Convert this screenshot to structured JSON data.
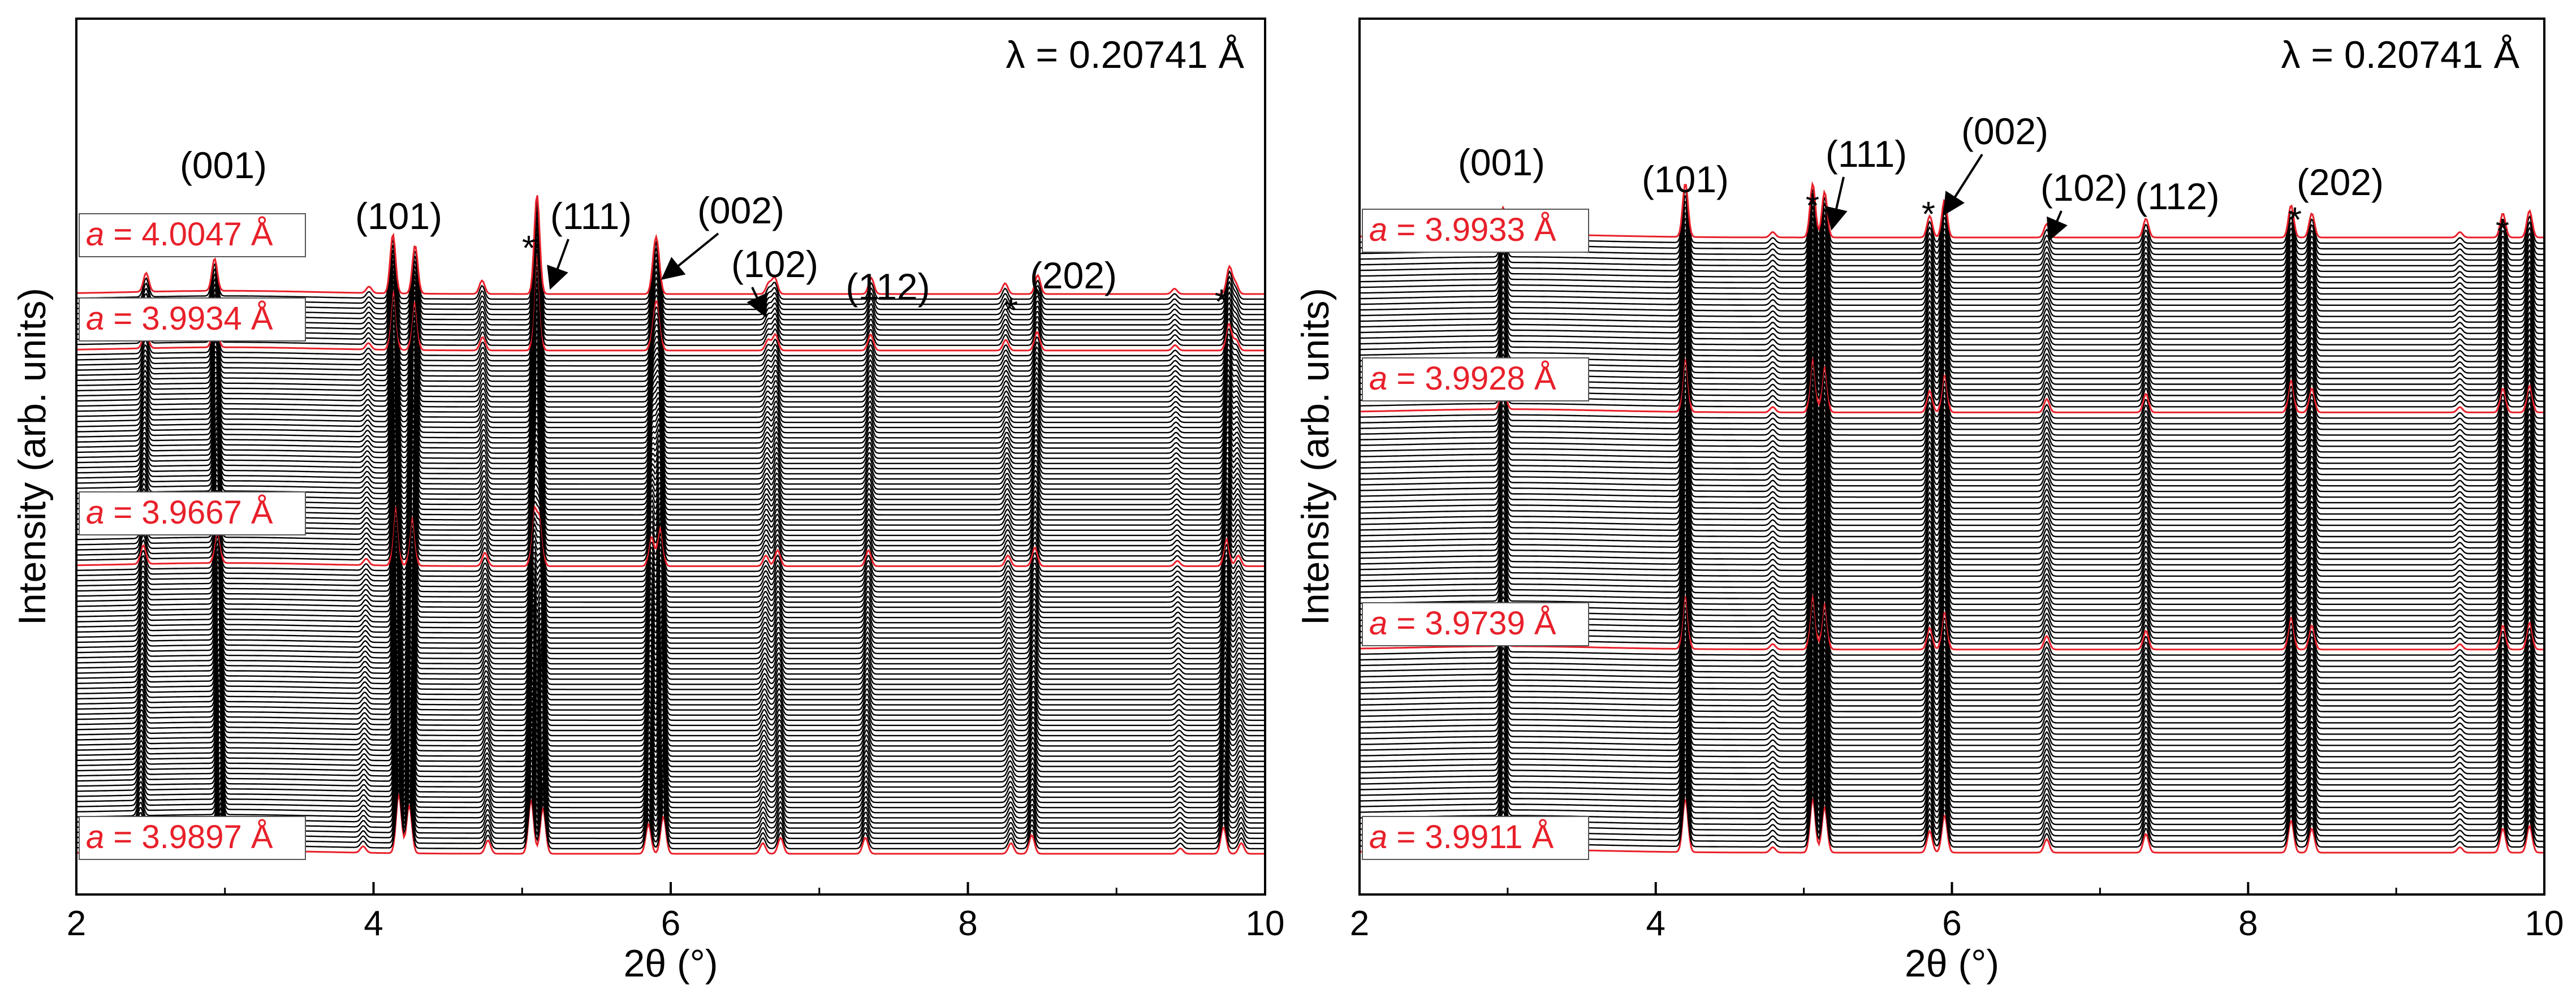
{
  "figure": {
    "x_unit_label": "2θ (°)",
    "y_label": "Intensity (arb. units)",
    "wavelength_label": "λ = 0.20741 Å",
    "colors": {
      "trace": "#000000",
      "highlight": "#e8202a",
      "label_text": "#e8202a",
      "axis": "#000000"
    }
  },
  "chart_data": [
    {
      "type": "line",
      "title": "",
      "xlabel": "2θ (°)",
      "ylabel": "Intensity (arb. units)",
      "xlim": [
        2,
        10
      ],
      "xticks": [
        2,
        4,
        6,
        8,
        10
      ],
      "grid": false,
      "wavelength": "λ = 0.20741 Å",
      "series_count": 110,
      "highlighted_series_labels": [
        {
          "prefix": "a",
          "text": " = 4.0047 Å"
        },
        {
          "prefix": "a",
          "text": " = 3.9934 Å"
        },
        {
          "prefix": "a",
          "text": " = 3.9667 Å"
        },
        {
          "prefix": "a",
          "text": " = 3.9897 Å"
        }
      ],
      "highlighted_series_index_from_bottom": [
        109,
        98,
        56,
        0
      ],
      "peaks_two_theta": [
        2.43,
        2.97,
        3.93,
        4.17,
        4.24,
        4.77,
        5.06,
        5.14,
        5.85,
        5.95,
        6.62,
        6.74,
        7.31,
        8.29,
        8.43,
        9.43,
        9.72,
        9.84
      ],
      "peak_heights": [
        0.35,
        0.6,
        0.12,
        1.1,
        0.9,
        0.25,
        1.0,
        0.85,
        0.55,
        0.7,
        0.2,
        0.3,
        0.3,
        0.2,
        0.35,
        0.1,
        0.5,
        0.2
      ],
      "annotations": [
        {
          "text": "(001)",
          "x": 2.97
        },
        {
          "text": "(101)",
          "x": 4.2
        },
        {
          "text": "*",
          "x": 5.06
        },
        {
          "text": "(111)",
          "x": 5.14
        },
        {
          "text": "(002)",
          "x": 5.95
        },
        {
          "text": "(102)",
          "x": 6.62
        },
        {
          "text": "(112)",
          "x": 7.31
        },
        {
          "text": "*",
          "x": 8.29
        },
        {
          "text": "(202)",
          "x": 8.43
        },
        {
          "text": "*",
          "x": 9.72
        }
      ]
    },
    {
      "type": "line",
      "title": "",
      "xlabel": "2θ (°)",
      "ylabel": "Intensity (arb. units)",
      "xlim": [
        2,
        10
      ],
      "xticks": [
        2,
        4,
        6,
        8,
        10
      ],
      "grid": false,
      "wavelength": "λ = 0.20741 Å",
      "series_count": 110,
      "highlighted_series_labels": [
        {
          "prefix": "a",
          "text": " = 3.9933 Å"
        },
        {
          "prefix": "a",
          "text": " = 3.9928 Å"
        },
        {
          "prefix": "a",
          "text": " = 3.9739 Å"
        },
        {
          "prefix": "a",
          "text": " = 3.9911 Å"
        }
      ],
      "highlighted_series_index_from_bottom": [
        109,
        78,
        36,
        0
      ],
      "peaks_two_theta": [
        2.97,
        4.2,
        4.79,
        5.06,
        5.14,
        5.85,
        5.95,
        6.64,
        7.31,
        8.29,
        8.43,
        9.43,
        9.72,
        9.9
      ],
      "peak_heights": [
        0.5,
        1.0,
        0.1,
        1.0,
        0.85,
        0.4,
        0.7,
        0.25,
        0.35,
        0.6,
        0.45,
        0.1,
        0.45,
        0.5
      ],
      "annotations": [
        {
          "text": "(001)",
          "x": 2.97
        },
        {
          "text": "(101)",
          "x": 4.2
        },
        {
          "text": "*",
          "x": 5.06
        },
        {
          "text": "(111)",
          "x": 5.14
        },
        {
          "text": "*",
          "x": 5.85
        },
        {
          "text": "(002)",
          "x": 5.95
        },
        {
          "text": "(102)",
          "x": 6.64
        },
        {
          "text": "(112)",
          "x": 7.31
        },
        {
          "text": "*",
          "x": 8.29
        },
        {
          "text": "(202)",
          "x": 8.43
        },
        {
          "text": "*",
          "x": 9.72
        }
      ]
    }
  ]
}
